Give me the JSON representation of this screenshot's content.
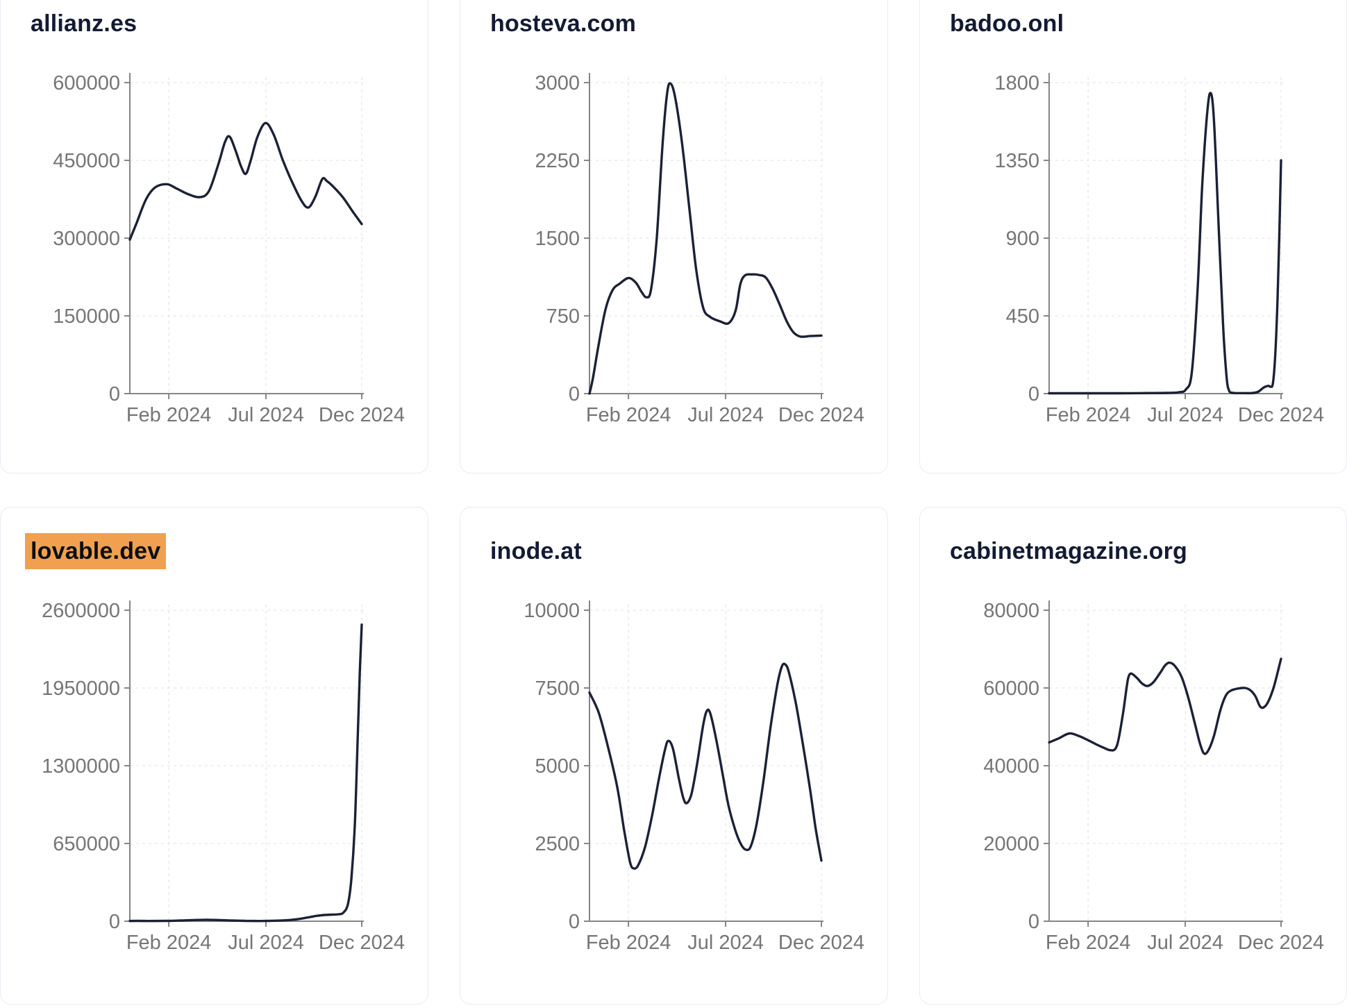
{
  "page": {
    "background": "#ffffff",
    "card_border_color": "#e8ebf3",
    "title_color": "#131b33",
    "highlight_color": "#f0a04f",
    "line_color": "#1b2135",
    "axis_color": "#858585",
    "tick_label_color": "#757575",
    "grid_color": "#e7e7e7"
  },
  "cards": [
    {
      "title": "allianz.es",
      "highlighted": false,
      "chart_data": {
        "type": "line",
        "title": "allianz.es",
        "xlabel": "",
        "ylabel": "",
        "ylim": [
          0,
          600000
        ],
        "y_ticks": [
          0,
          150000,
          300000,
          450000,
          600000
        ],
        "x_ticks": [
          {
            "label": "Feb 2024",
            "t": 0.168
          },
          {
            "label": "Jul 2024",
            "t": 0.587
          },
          {
            "label": "Dec 2024",
            "t": 1.0
          }
        ],
        "grid": true,
        "points": [
          [
            0,
            297000
          ],
          [
            0.03,
            330000
          ],
          [
            0.07,
            375000
          ],
          [
            0.11,
            398000
          ],
          [
            0.16,
            404000
          ],
          [
            0.2,
            396000
          ],
          [
            0.25,
            385000
          ],
          [
            0.3,
            379000
          ],
          [
            0.34,
            390000
          ],
          [
            0.38,
            440000
          ],
          [
            0.41,
            485000
          ],
          [
            0.43,
            496000
          ],
          [
            0.455,
            470000
          ],
          [
            0.48,
            438000
          ],
          [
            0.5,
            424000
          ],
          [
            0.52,
            448000
          ],
          [
            0.55,
            495000
          ],
          [
            0.585,
            522000
          ],
          [
            0.62,
            500000
          ],
          [
            0.66,
            450000
          ],
          [
            0.7,
            408000
          ],
          [
            0.74,
            372000
          ],
          [
            0.77,
            359000
          ],
          [
            0.8,
            380000
          ],
          [
            0.83,
            414000
          ],
          [
            0.85,
            410000
          ],
          [
            0.88,
            398000
          ],
          [
            0.92,
            378000
          ],
          [
            0.96,
            352000
          ],
          [
            1.0,
            327000
          ]
        ]
      }
    },
    {
      "title": "hosteva.com",
      "highlighted": false,
      "chart_data": {
        "type": "line",
        "title": "hosteva.com",
        "xlabel": "",
        "ylabel": "",
        "ylim": [
          0,
          3000
        ],
        "y_ticks": [
          0,
          750,
          1500,
          2250,
          3000
        ],
        "x_ticks": [
          {
            "label": "Feb 2024",
            "t": 0.168
          },
          {
            "label": "Jul 2024",
            "t": 0.587
          },
          {
            "label": "Dec 2024",
            "t": 1.0
          }
        ],
        "grid": true,
        "points": [
          [
            0,
            0
          ],
          [
            0.015,
            150
          ],
          [
            0.04,
            480
          ],
          [
            0.07,
            820
          ],
          [
            0.1,
            1000
          ],
          [
            0.13,
            1060
          ],
          [
            0.168,
            1115
          ],
          [
            0.2,
            1070
          ],
          [
            0.225,
            980
          ],
          [
            0.245,
            930
          ],
          [
            0.265,
            1000
          ],
          [
            0.29,
            1500
          ],
          [
            0.315,
            2400
          ],
          [
            0.335,
            2900
          ],
          [
            0.35,
            2990
          ],
          [
            0.37,
            2850
          ],
          [
            0.4,
            2400
          ],
          [
            0.43,
            1800
          ],
          [
            0.46,
            1200
          ],
          [
            0.49,
            830
          ],
          [
            0.52,
            740
          ],
          [
            0.56,
            700
          ],
          [
            0.6,
            680
          ],
          [
            0.63,
            800
          ],
          [
            0.65,
            1050
          ],
          [
            0.67,
            1140
          ],
          [
            0.7,
            1150
          ],
          [
            0.73,
            1145
          ],
          [
            0.76,
            1120
          ],
          [
            0.79,
            1010
          ],
          [
            0.82,
            860
          ],
          [
            0.85,
            700
          ],
          [
            0.88,
            590
          ],
          [
            0.91,
            550
          ],
          [
            0.95,
            555
          ],
          [
            1.0,
            560
          ]
        ]
      }
    },
    {
      "title": "badoo.onl",
      "highlighted": false,
      "chart_data": {
        "type": "line",
        "title": "badoo.onl",
        "xlabel": "",
        "ylabel": "",
        "ylim": [
          0,
          1800
        ],
        "y_ticks": [
          0,
          450,
          900,
          1350,
          1800
        ],
        "x_ticks": [
          {
            "label": "Feb 2024",
            "t": 0.168
          },
          {
            "label": "Jul 2024",
            "t": 0.587
          },
          {
            "label": "Dec 2024",
            "t": 1.0
          }
        ],
        "grid": true,
        "points": [
          [
            0,
            2
          ],
          [
            0.1,
            2
          ],
          [
            0.2,
            2
          ],
          [
            0.3,
            2
          ],
          [
            0.4,
            3
          ],
          [
            0.5,
            4
          ],
          [
            0.56,
            8
          ],
          [
            0.59,
            25
          ],
          [
            0.615,
            120
          ],
          [
            0.64,
            600
          ],
          [
            0.66,
            1200
          ],
          [
            0.68,
            1600
          ],
          [
            0.695,
            1740
          ],
          [
            0.71,
            1600
          ],
          [
            0.73,
            1000
          ],
          [
            0.75,
            400
          ],
          [
            0.765,
            100
          ],
          [
            0.775,
            20
          ],
          [
            0.79,
            5
          ],
          [
            0.83,
            3
          ],
          [
            0.87,
            3
          ],
          [
            0.9,
            10
          ],
          [
            0.925,
            35
          ],
          [
            0.945,
            45
          ],
          [
            0.955,
            40
          ],
          [
            0.965,
            60
          ],
          [
            0.975,
            220
          ],
          [
            0.985,
            550
          ],
          [
            0.993,
            950
          ],
          [
            1.0,
            1350
          ]
        ]
      }
    },
    {
      "title": "lovable.dev",
      "highlighted": true,
      "chart_data": {
        "type": "line",
        "title": "lovable.dev",
        "xlabel": "",
        "ylabel": "",
        "ylim": [
          0,
          2600000
        ],
        "y_ticks": [
          0,
          650000,
          1300000,
          1950000,
          2600000
        ],
        "x_ticks": [
          {
            "label": "Feb 2024",
            "t": 0.168
          },
          {
            "label": "Jul 2024",
            "t": 0.587
          },
          {
            "label": "Dec 2024",
            "t": 1.0
          }
        ],
        "grid": true,
        "points": [
          [
            0,
            2000
          ],
          [
            0.08,
            2000
          ],
          [
            0.16,
            3000
          ],
          [
            0.22,
            6000
          ],
          [
            0.28,
            10000
          ],
          [
            0.33,
            12000
          ],
          [
            0.38,
            10000
          ],
          [
            0.44,
            6000
          ],
          [
            0.5,
            3000
          ],
          [
            0.55,
            2000
          ],
          [
            0.6,
            3000
          ],
          [
            0.65,
            6000
          ],
          [
            0.7,
            12000
          ],
          [
            0.74,
            22000
          ],
          [
            0.78,
            36000
          ],
          [
            0.81,
            46000
          ],
          [
            0.84,
            52000
          ],
          [
            0.87,
            55000
          ],
          [
            0.9,
            58000
          ],
          [
            0.92,
            70000
          ],
          [
            0.94,
            140000
          ],
          [
            0.955,
            350000
          ],
          [
            0.97,
            800000
          ],
          [
            0.982,
            1500000
          ],
          [
            0.992,
            2100000
          ],
          [
            1.0,
            2480000
          ]
        ]
      }
    },
    {
      "title": "inode.at",
      "highlighted": false,
      "chart_data": {
        "type": "line",
        "title": "inode.at",
        "xlabel": "",
        "ylabel": "",
        "ylim": [
          0,
          10000
        ],
        "y_ticks": [
          0,
          2500,
          5000,
          7500,
          10000
        ],
        "x_ticks": [
          {
            "label": "Feb 2024",
            "t": 0.168
          },
          {
            "label": "Jul 2024",
            "t": 0.587
          },
          {
            "label": "Dec 2024",
            "t": 1.0
          }
        ],
        "grid": true,
        "points": [
          [
            0,
            7350
          ],
          [
            0.04,
            6700
          ],
          [
            0.08,
            5600
          ],
          [
            0.12,
            4300
          ],
          [
            0.15,
            2900
          ],
          [
            0.175,
            1900
          ],
          [
            0.19,
            1700
          ],
          [
            0.21,
            1800
          ],
          [
            0.24,
            2400
          ],
          [
            0.27,
            3400
          ],
          [
            0.3,
            4600
          ],
          [
            0.325,
            5500
          ],
          [
            0.34,
            5800
          ],
          [
            0.36,
            5550
          ],
          [
            0.385,
            4600
          ],
          [
            0.405,
            3950
          ],
          [
            0.42,
            3800
          ],
          [
            0.44,
            4100
          ],
          [
            0.465,
            5100
          ],
          [
            0.49,
            6300
          ],
          [
            0.505,
            6750
          ],
          [
            0.52,
            6700
          ],
          [
            0.545,
            5900
          ],
          [
            0.575,
            4700
          ],
          [
            0.6,
            3700
          ],
          [
            0.63,
            2900
          ],
          [
            0.655,
            2450
          ],
          [
            0.675,
            2300
          ],
          [
            0.695,
            2400
          ],
          [
            0.72,
            3100
          ],
          [
            0.75,
            4500
          ],
          [
            0.78,
            6200
          ],
          [
            0.81,
            7600
          ],
          [
            0.83,
            8200
          ],
          [
            0.845,
            8250
          ],
          [
            0.86,
            8000
          ],
          [
            0.89,
            7000
          ],
          [
            0.92,
            5700
          ],
          [
            0.95,
            4300
          ],
          [
            0.975,
            3000
          ],
          [
            1.0,
            1950
          ]
        ]
      }
    },
    {
      "title": "cabinetmagazine.org",
      "highlighted": false,
      "chart_data": {
        "type": "line",
        "title": "cabinetmagazine.org",
        "xlabel": "",
        "ylabel": "",
        "ylim": [
          0,
          80000
        ],
        "y_ticks": [
          0,
          20000,
          40000,
          60000,
          80000
        ],
        "x_ticks": [
          {
            "label": "Feb 2024",
            "t": 0.168
          },
          {
            "label": "Jul 2024",
            "t": 0.587
          },
          {
            "label": "Dec 2024",
            "t": 1.0
          }
        ],
        "grid": true,
        "points": [
          [
            0,
            46000
          ],
          [
            0.04,
            47000
          ],
          [
            0.087,
            48300
          ],
          [
            0.13,
            47600
          ],
          [
            0.17,
            46500
          ],
          [
            0.21,
            45300
          ],
          [
            0.24,
            44500
          ],
          [
            0.262,
            44000
          ],
          [
            0.285,
            44300
          ],
          [
            0.3,
            47000
          ],
          [
            0.32,
            54000
          ],
          [
            0.335,
            60500
          ],
          [
            0.343,
            63000
          ],
          [
            0.355,
            63700
          ],
          [
            0.38,
            62500
          ],
          [
            0.4,
            61200
          ],
          [
            0.424,
            60500
          ],
          [
            0.45,
            61500
          ],
          [
            0.48,
            64000
          ],
          [
            0.5,
            65800
          ],
          [
            0.518,
            66500
          ],
          [
            0.54,
            65800
          ],
          [
            0.57,
            63000
          ],
          [
            0.6,
            57500
          ],
          [
            0.63,
            50500
          ],
          [
            0.65,
            45800
          ],
          [
            0.667,
            43200
          ],
          [
            0.685,
            43800
          ],
          [
            0.71,
            47500
          ],
          [
            0.737,
            54000
          ],
          [
            0.76,
            57800
          ],
          [
            0.78,
            59200
          ],
          [
            0.81,
            59800
          ],
          [
            0.845,
            60000
          ],
          [
            0.87,
            59300
          ],
          [
            0.89,
            57800
          ],
          [
            0.909,
            55300
          ],
          [
            0.925,
            55000
          ],
          [
            0.945,
            56500
          ],
          [
            0.97,
            60500
          ],
          [
            1.0,
            67500
          ]
        ]
      }
    }
  ]
}
